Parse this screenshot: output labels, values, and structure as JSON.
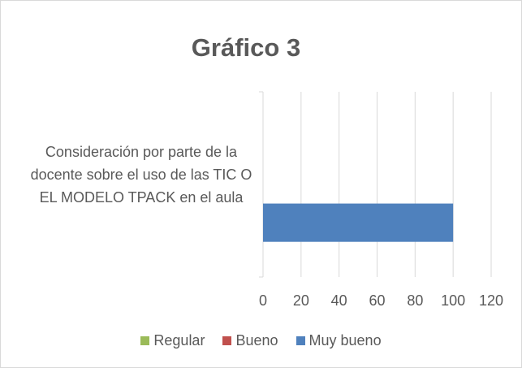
{
  "chart_data": {
    "type": "bar",
    "orientation": "horizontal",
    "title": "Gráfico 3",
    "categories": [
      "Consideración por parte de la docente sobre el uso de las TIC O EL MODELO TPACK en el aula"
    ],
    "series": [
      {
        "name": "Regular",
        "color": "#9bbb59",
        "values": [
          0
        ]
      },
      {
        "name": "Bueno",
        "color": "#c0504d",
        "values": [
          0
        ]
      },
      {
        "name": "Muy bueno",
        "color": "#4f81bd",
        "values": [
          100
        ]
      }
    ],
    "xlim": [
      0,
      120
    ],
    "xticks": [
      0,
      20,
      40,
      60,
      80,
      100,
      120
    ],
    "grid": true,
    "legend": "bottom"
  }
}
